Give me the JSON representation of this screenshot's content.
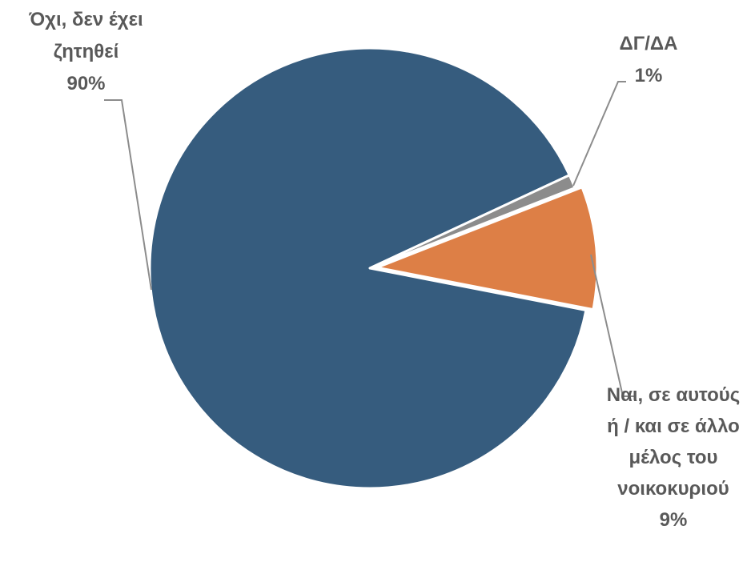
{
  "chart_data": {
    "type": "pie",
    "categories": [
      "Όχι, δεν έχει ζητηθεί",
      "ΔΓ/ΔΑ",
      "Ναι, σε αυτούς ή / και σε άλλο μέλος του νοικοκυριού"
    ],
    "values": [
      90,
      1,
      9
    ],
    "value_labels": [
      "90%",
      "1%",
      "9%"
    ],
    "colors": [
      "#365c7e",
      "#8c8c8c",
      "#dd7f46"
    ]
  }
}
